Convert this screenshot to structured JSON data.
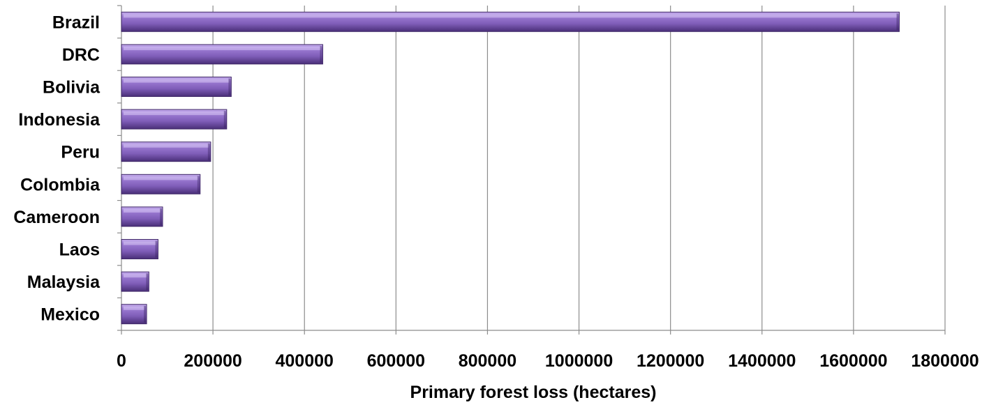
{
  "chart_data": {
    "type": "bar",
    "orientation": "horizontal",
    "categories": [
      "Brazil",
      "DRC",
      "Bolivia",
      "Indonesia",
      "Peru",
      "Colombia",
      "Cameroon",
      "Laos",
      "Malaysia",
      "Mexico"
    ],
    "values": [
      1700000,
      440000,
      240000,
      230000,
      195000,
      172000,
      90000,
      80000,
      60000,
      55000
    ],
    "xlabel": "Primary forest loss (hectares)",
    "ylabel": "",
    "xlim": [
      0,
      1800000
    ],
    "xticks": [
      "0",
      "200000",
      "400000",
      "600000",
      "800000",
      "1000000",
      "1200000",
      "1400000",
      "1600000",
      "1800000"
    ],
    "grid": "vertical",
    "legend": "none",
    "colors": {
      "bar": "#8a67c2",
      "bar_light": "#b79be6",
      "bar_dark": "#4a2f78",
      "grid": "#8c8c8c"
    }
  }
}
